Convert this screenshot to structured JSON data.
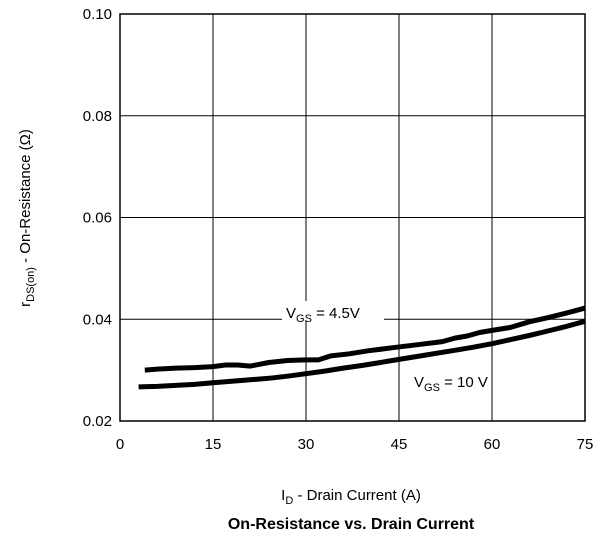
{
  "chart_data": {
    "type": "line",
    "title": "On-Resistance vs. Drain Current",
    "xlabel": {
      "main": "I",
      "sub": "D",
      "rest": " - Drain Current (A)"
    },
    "ylabel": {
      "main": "r",
      "sub": "DS(on)",
      "rest": " - On-Resistance (Ω)"
    },
    "xlim": [
      0,
      75
    ],
    "ylim": [
      0.02,
      0.1
    ],
    "xticks": [
      "0",
      "15",
      "30",
      "45",
      "60",
      "75"
    ],
    "yticks": [
      "0.02",
      "0.04",
      "0.06",
      "0.08",
      "0.10"
    ],
    "grid": true,
    "series": [
      {
        "name": "VGS = 4.5V",
        "label": {
          "main": "V",
          "sub": "GS",
          "rest": " = 4.5V"
        },
        "x": [
          4,
          6,
          9,
          12,
          15,
          17,
          19,
          21,
          24,
          27,
          30,
          32,
          34,
          37,
          40,
          44,
          48,
          52,
          54,
          56,
          58,
          60,
          63,
          66,
          69,
          72,
          75
        ],
        "y": [
          0.03,
          0.0302,
          0.0304,
          0.0305,
          0.0307,
          0.031,
          0.031,
          0.0308,
          0.0315,
          0.0319,
          0.032,
          0.032,
          0.0328,
          0.0332,
          0.0338,
          0.0344,
          0.035,
          0.0356,
          0.0363,
          0.0367,
          0.0374,
          0.0378,
          0.0384,
          0.0395,
          0.0403,
          0.0412,
          0.0422
        ]
      },
      {
        "name": "VGS = 10 V",
        "label": {
          "main": "V",
          "sub": "GS",
          "rest": " = 10 V"
        },
        "x": [
          3,
          6,
          9,
          12,
          15,
          18,
          21,
          24,
          27,
          30,
          33,
          36,
          39,
          42,
          45,
          48,
          51,
          54,
          57,
          60,
          63,
          66,
          69,
          72,
          75
        ],
        "y": [
          0.0267,
          0.0268,
          0.027,
          0.0272,
          0.0275,
          0.0278,
          0.0281,
          0.0284,
          0.0288,
          0.0293,
          0.0298,
          0.0304,
          0.0309,
          0.0315,
          0.0321,
          0.0327,
          0.0333,
          0.0339,
          0.0345,
          0.0352,
          0.036,
          0.0368,
          0.0377,
          0.0386,
          0.0396
        ]
      }
    ]
  }
}
